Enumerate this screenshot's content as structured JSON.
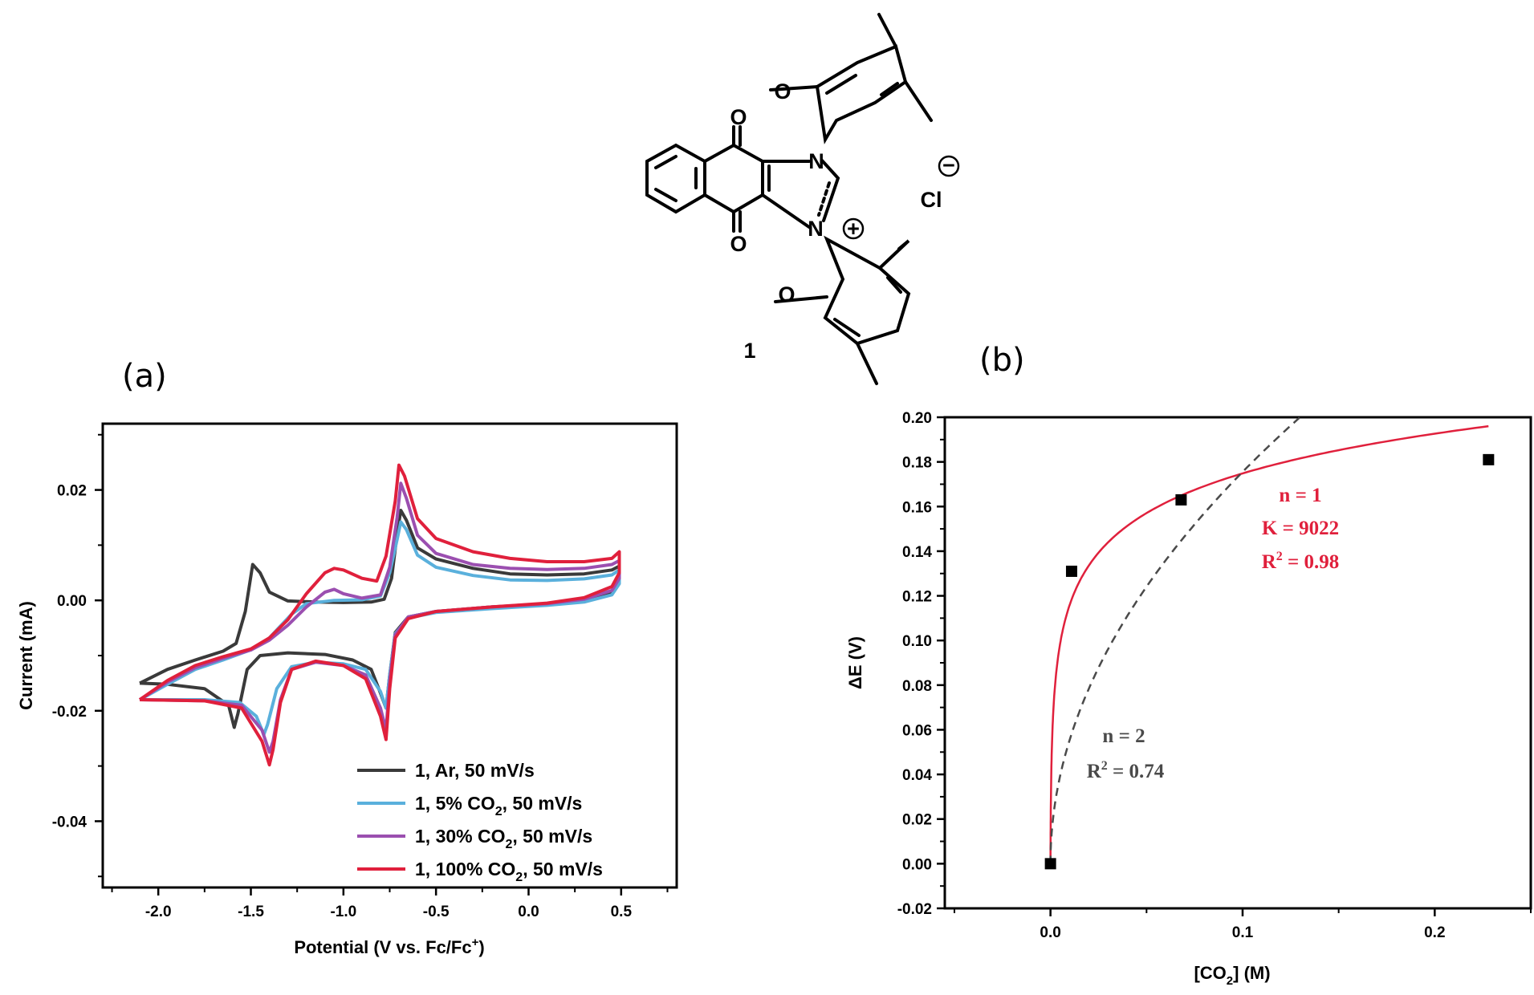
{
  "structure": {
    "atoms": [
      "O",
      "O",
      "O",
      "O",
      "N",
      "N",
      "Cl"
    ],
    "charges": [
      "+",
      "−"
    ],
    "compound_label": "1"
  },
  "chart_data": [
    {
      "panel_label": "(a)",
      "type": "line",
      "xlabel": "Potential (V vs. Fc/Fc",
      "xlabel_sup": "+",
      "xlabel_tail": ")",
      "ylabel": "Current (mA)",
      "xlim": [
        -2.3,
        0.8
      ],
      "ylim": [
        -0.052,
        0.032
      ],
      "xticks": [
        -2.0,
        -1.5,
        -1.0,
        -0.5,
        0.0,
        0.5
      ],
      "xtick_labels": [
        "-2.0",
        "-1.5",
        "-1.0",
        "-0.5",
        "0.0",
        "0.5"
      ],
      "yticks": [
        0.02,
        0.0,
        -0.02,
        -0.04
      ],
      "ytick_labels": [
        "0.02",
        "0.00",
        "-0.02",
        "-0.04"
      ],
      "legend_position": "bottom-right",
      "series": [
        {
          "name": "1, Ar, 50 mV/s",
          "color": "#3a3a3a",
          "points": [
            [
              -2.1,
              -0.015
            ],
            [
              -1.95,
              -0.0125
            ],
            [
              -1.8,
              -0.0108
            ],
            [
              -1.65,
              -0.0092
            ],
            [
              -1.58,
              -0.0078
            ],
            [
              -1.53,
              -0.002
            ],
            [
              -1.49,
              0.0065
            ],
            [
              -1.45,
              0.005
            ],
            [
              -1.4,
              0.0015
            ],
            [
              -1.3,
              -0.0001
            ],
            [
              -1.15,
              -0.0003
            ],
            [
              -1.0,
              -0.0004
            ],
            [
              -0.85,
              -0.0003
            ],
            [
              -0.78,
              0.0002
            ],
            [
              -0.74,
              0.004
            ],
            [
              -0.71,
              0.012
            ],
            [
              -0.69,
              0.0163
            ],
            [
              -0.66,
              0.0145
            ],
            [
              -0.6,
              0.0095
            ],
            [
              -0.5,
              0.0075
            ],
            [
              -0.3,
              0.0058
            ],
            [
              -0.1,
              0.0048
            ],
            [
              0.1,
              0.0046
            ],
            [
              0.3,
              0.0048
            ],
            [
              0.45,
              0.0055
            ],
            [
              0.49,
              0.0062
            ],
            [
              0.49,
              0.0035
            ],
            [
              0.45,
              0.0015
            ],
            [
              0.3,
              0.0
            ],
            [
              0.1,
              -0.0007
            ],
            [
              -0.2,
              -0.0012
            ],
            [
              -0.5,
              -0.002
            ],
            [
              -0.65,
              -0.003
            ],
            [
              -0.72,
              -0.0058
            ],
            [
              -0.75,
              -0.0135
            ],
            [
              -0.77,
              -0.0195
            ],
            [
              -0.8,
              -0.0168
            ],
            [
              -0.85,
              -0.0125
            ],
            [
              -0.95,
              -0.0108
            ],
            [
              -1.1,
              -0.0098
            ],
            [
              -1.3,
              -0.0095
            ],
            [
              -1.45,
              -0.01
            ],
            [
              -1.52,
              -0.0125
            ],
            [
              -1.57,
              -0.0205
            ],
            [
              -1.59,
              -0.023
            ],
            [
              -1.62,
              -0.019
            ],
            [
              -1.75,
              -0.016
            ],
            [
              -1.95,
              -0.0152
            ],
            [
              -2.1,
              -0.015
            ]
          ]
        },
        {
          "name": "1, 5% CO",
          "sub": "2",
          "tail": ", 50 mV/s",
          "color": "#5ab0dc",
          "points": [
            [
              -2.1,
              -0.018
            ],
            [
              -1.95,
              -0.0152
            ],
            [
              -1.8,
              -0.0125
            ],
            [
              -1.65,
              -0.0108
            ],
            [
              -1.52,
              -0.0092
            ],
            [
              -1.42,
              -0.0075
            ],
            [
              -1.35,
              -0.005
            ],
            [
              -1.28,
              -0.0025
            ],
            [
              -1.2,
              -0.0006
            ],
            [
              -1.05,
              0.0
            ],
            [
              -0.9,
              0.0001
            ],
            [
              -0.8,
              0.0008
            ],
            [
              -0.75,
              0.005
            ],
            [
              -0.71,
              0.011
            ],
            [
              -0.69,
              0.0142
            ],
            [
              -0.66,
              0.0128
            ],
            [
              -0.6,
              0.0082
            ],
            [
              -0.5,
              0.006
            ],
            [
              -0.3,
              0.0045
            ],
            [
              -0.1,
              0.0037
            ],
            [
              0.1,
              0.0036
            ],
            [
              0.3,
              0.0039
            ],
            [
              0.45,
              0.0046
            ],
            [
              0.49,
              0.0055
            ],
            [
              0.49,
              0.003
            ],
            [
              0.45,
              0.001
            ],
            [
              0.3,
              -0.0003
            ],
            [
              0.1,
              -0.0009
            ],
            [
              -0.2,
              -0.0015
            ],
            [
              -0.5,
              -0.0022
            ],
            [
              -0.65,
              -0.0032
            ],
            [
              -0.72,
              -0.006
            ],
            [
              -0.75,
              -0.0135
            ],
            [
              -0.77,
              -0.0195
            ],
            [
              -0.8,
              -0.0165
            ],
            [
              -0.88,
              -0.0125
            ],
            [
              -1.0,
              -0.0115
            ],
            [
              -1.15,
              -0.0112
            ],
            [
              -1.28,
              -0.012
            ],
            [
              -1.36,
              -0.016
            ],
            [
              -1.41,
              -0.0225
            ],
            [
              -1.43,
              -0.0243
            ],
            [
              -1.47,
              -0.021
            ],
            [
              -1.56,
              -0.0185
            ],
            [
              -1.75,
              -0.018
            ],
            [
              -2.1,
              -0.018
            ]
          ]
        },
        {
          "name": "1, 30% CO",
          "sub": "2",
          "tail": ", 50 mV/s",
          "color": "#9b4fb0",
          "points": [
            [
              -2.1,
              -0.018
            ],
            [
              -1.95,
              -0.0148
            ],
            [
              -1.8,
              -0.0122
            ],
            [
              -1.65,
              -0.0105
            ],
            [
              -1.5,
              -0.009
            ],
            [
              -1.4,
              -0.0072
            ],
            [
              -1.3,
              -0.0045
            ],
            [
              -1.2,
              -0.0012
            ],
            [
              -1.1,
              0.0015
            ],
            [
              -1.05,
              0.002
            ],
            [
              -1.0,
              0.0012
            ],
            [
              -0.9,
              0.0004
            ],
            [
              -0.8,
              0.001
            ],
            [
              -0.75,
              0.006
            ],
            [
              -0.71,
              0.015
            ],
            [
              -0.69,
              0.0212
            ],
            [
              -0.66,
              0.0185
            ],
            [
              -0.6,
              0.0118
            ],
            [
              -0.5,
              0.0085
            ],
            [
              -0.3,
              0.0065
            ],
            [
              -0.1,
              0.0058
            ],
            [
              0.1,
              0.0056
            ],
            [
              0.3,
              0.0058
            ],
            [
              0.45,
              0.0065
            ],
            [
              0.49,
              0.0072
            ],
            [
              0.49,
              0.004
            ],
            [
              0.45,
              0.0018
            ],
            [
              0.3,
              0.0002
            ],
            [
              0.1,
              -0.0006
            ],
            [
              -0.2,
              -0.0012
            ],
            [
              -0.5,
              -0.002
            ],
            [
              -0.65,
              -0.003
            ],
            [
              -0.72,
              -0.0062
            ],
            [
              -0.75,
              -0.0145
            ],
            [
              -0.77,
              -0.0235
            ],
            [
              -0.8,
              -0.0195
            ],
            [
              -0.88,
              -0.0135
            ],
            [
              -1.0,
              -0.0118
            ],
            [
              -1.15,
              -0.0112
            ],
            [
              -1.28,
              -0.0125
            ],
            [
              -1.34,
              -0.018
            ],
            [
              -1.38,
              -0.0255
            ],
            [
              -1.4,
              -0.0275
            ],
            [
              -1.44,
              -0.0235
            ],
            [
              -1.55,
              -0.019
            ],
            [
              -1.75,
              -0.0182
            ],
            [
              -2.1,
              -0.018
            ]
          ]
        },
        {
          "name": "1, 100% CO",
          "sub": "2",
          "tail": ", 50 mV/s",
          "color": "#e0203c",
          "points": [
            [
              -2.1,
              -0.018
            ],
            [
              -1.95,
              -0.0145
            ],
            [
              -1.8,
              -0.0118
            ],
            [
              -1.65,
              -0.0102
            ],
            [
              -1.5,
              -0.0088
            ],
            [
              -1.4,
              -0.0068
            ],
            [
              -1.3,
              -0.0035
            ],
            [
              -1.2,
              0.0012
            ],
            [
              -1.1,
              0.005
            ],
            [
              -1.05,
              0.0058
            ],
            [
              -1.0,
              0.0055
            ],
            [
              -0.9,
              0.004
            ],
            [
              -0.82,
              0.0035
            ],
            [
              -0.77,
              0.008
            ],
            [
              -0.72,
              0.018
            ],
            [
              -0.7,
              0.0245
            ],
            [
              -0.67,
              0.0225
            ],
            [
              -0.6,
              0.0148
            ],
            [
              -0.5,
              0.0112
            ],
            [
              -0.3,
              0.0088
            ],
            [
              -0.1,
              0.0076
            ],
            [
              0.1,
              0.007
            ],
            [
              0.3,
              0.007
            ],
            [
              0.45,
              0.0076
            ],
            [
              0.49,
              0.0088
            ],
            [
              0.49,
              0.005
            ],
            [
              0.45,
              0.0025
            ],
            [
              0.3,
              0.0005
            ],
            [
              0.1,
              -0.0005
            ],
            [
              -0.2,
              -0.0012
            ],
            [
              -0.5,
              -0.002
            ],
            [
              -0.65,
              -0.0033
            ],
            [
              -0.72,
              -0.0068
            ],
            [
              -0.75,
              -0.016
            ],
            [
              -0.77,
              -0.0252
            ],
            [
              -0.8,
              -0.021
            ],
            [
              -0.88,
              -0.0142
            ],
            [
              -1.0,
              -0.0118
            ],
            [
              -1.15,
              -0.011
            ],
            [
              -1.28,
              -0.0125
            ],
            [
              -1.34,
              -0.0185
            ],
            [
              -1.38,
              -0.027
            ],
            [
              -1.4,
              -0.0298
            ],
            [
              -1.44,
              -0.0255
            ],
            [
              -1.55,
              -0.0195
            ],
            [
              -1.75,
              -0.0182
            ],
            [
              -2.1,
              -0.018
            ]
          ]
        }
      ]
    },
    {
      "panel_label": "(b)",
      "type": "scatter",
      "xlabel": "[CO",
      "xlabel_sub": "2",
      "xlabel_tail": "] (M)",
      "ylabel": "ΔE (V)",
      "xlim": [
        -0.055,
        0.25
      ],
      "ylim": [
        -0.02,
        0.2
      ],
      "xticks": [
        0.0,
        0.1,
        0.2
      ],
      "xtick_labels": [
        "0.0",
        "0.1",
        "0.2"
      ],
      "yticks": [
        -0.02,
        0.0,
        0.02,
        0.04,
        0.06,
        0.08,
        0.1,
        0.12,
        0.14,
        0.16,
        0.18,
        0.2
      ],
      "ytick_labels": [
        "-0.02",
        "0.00",
        "0.02",
        "0.04",
        "0.06",
        "0.08",
        "0.10",
        "0.12",
        "0.14",
        "0.16",
        "0.18",
        "0.20"
      ],
      "points": [
        [
          0.0,
          0.0
        ],
        [
          0.011,
          0.131
        ],
        [
          0.068,
          0.163
        ],
        [
          0.228,
          0.181
        ]
      ],
      "fits": [
        {
          "n": 1,
          "K": 9022,
          "color": "#e0203c",
          "style": "solid",
          "label_lines": [
            "n = 1",
            "K = 9022",
            "R",
            "2",
            " = 0.98"
          ],
          "x_end": 0.228
        },
        {
          "n": 2,
          "color": "#4a4a4a",
          "style": "dashed",
          "label_lines": [
            "n = 2",
            "R",
            "2",
            " = 0.74"
          ],
          "x_end": 0.13
        }
      ]
    }
  ]
}
